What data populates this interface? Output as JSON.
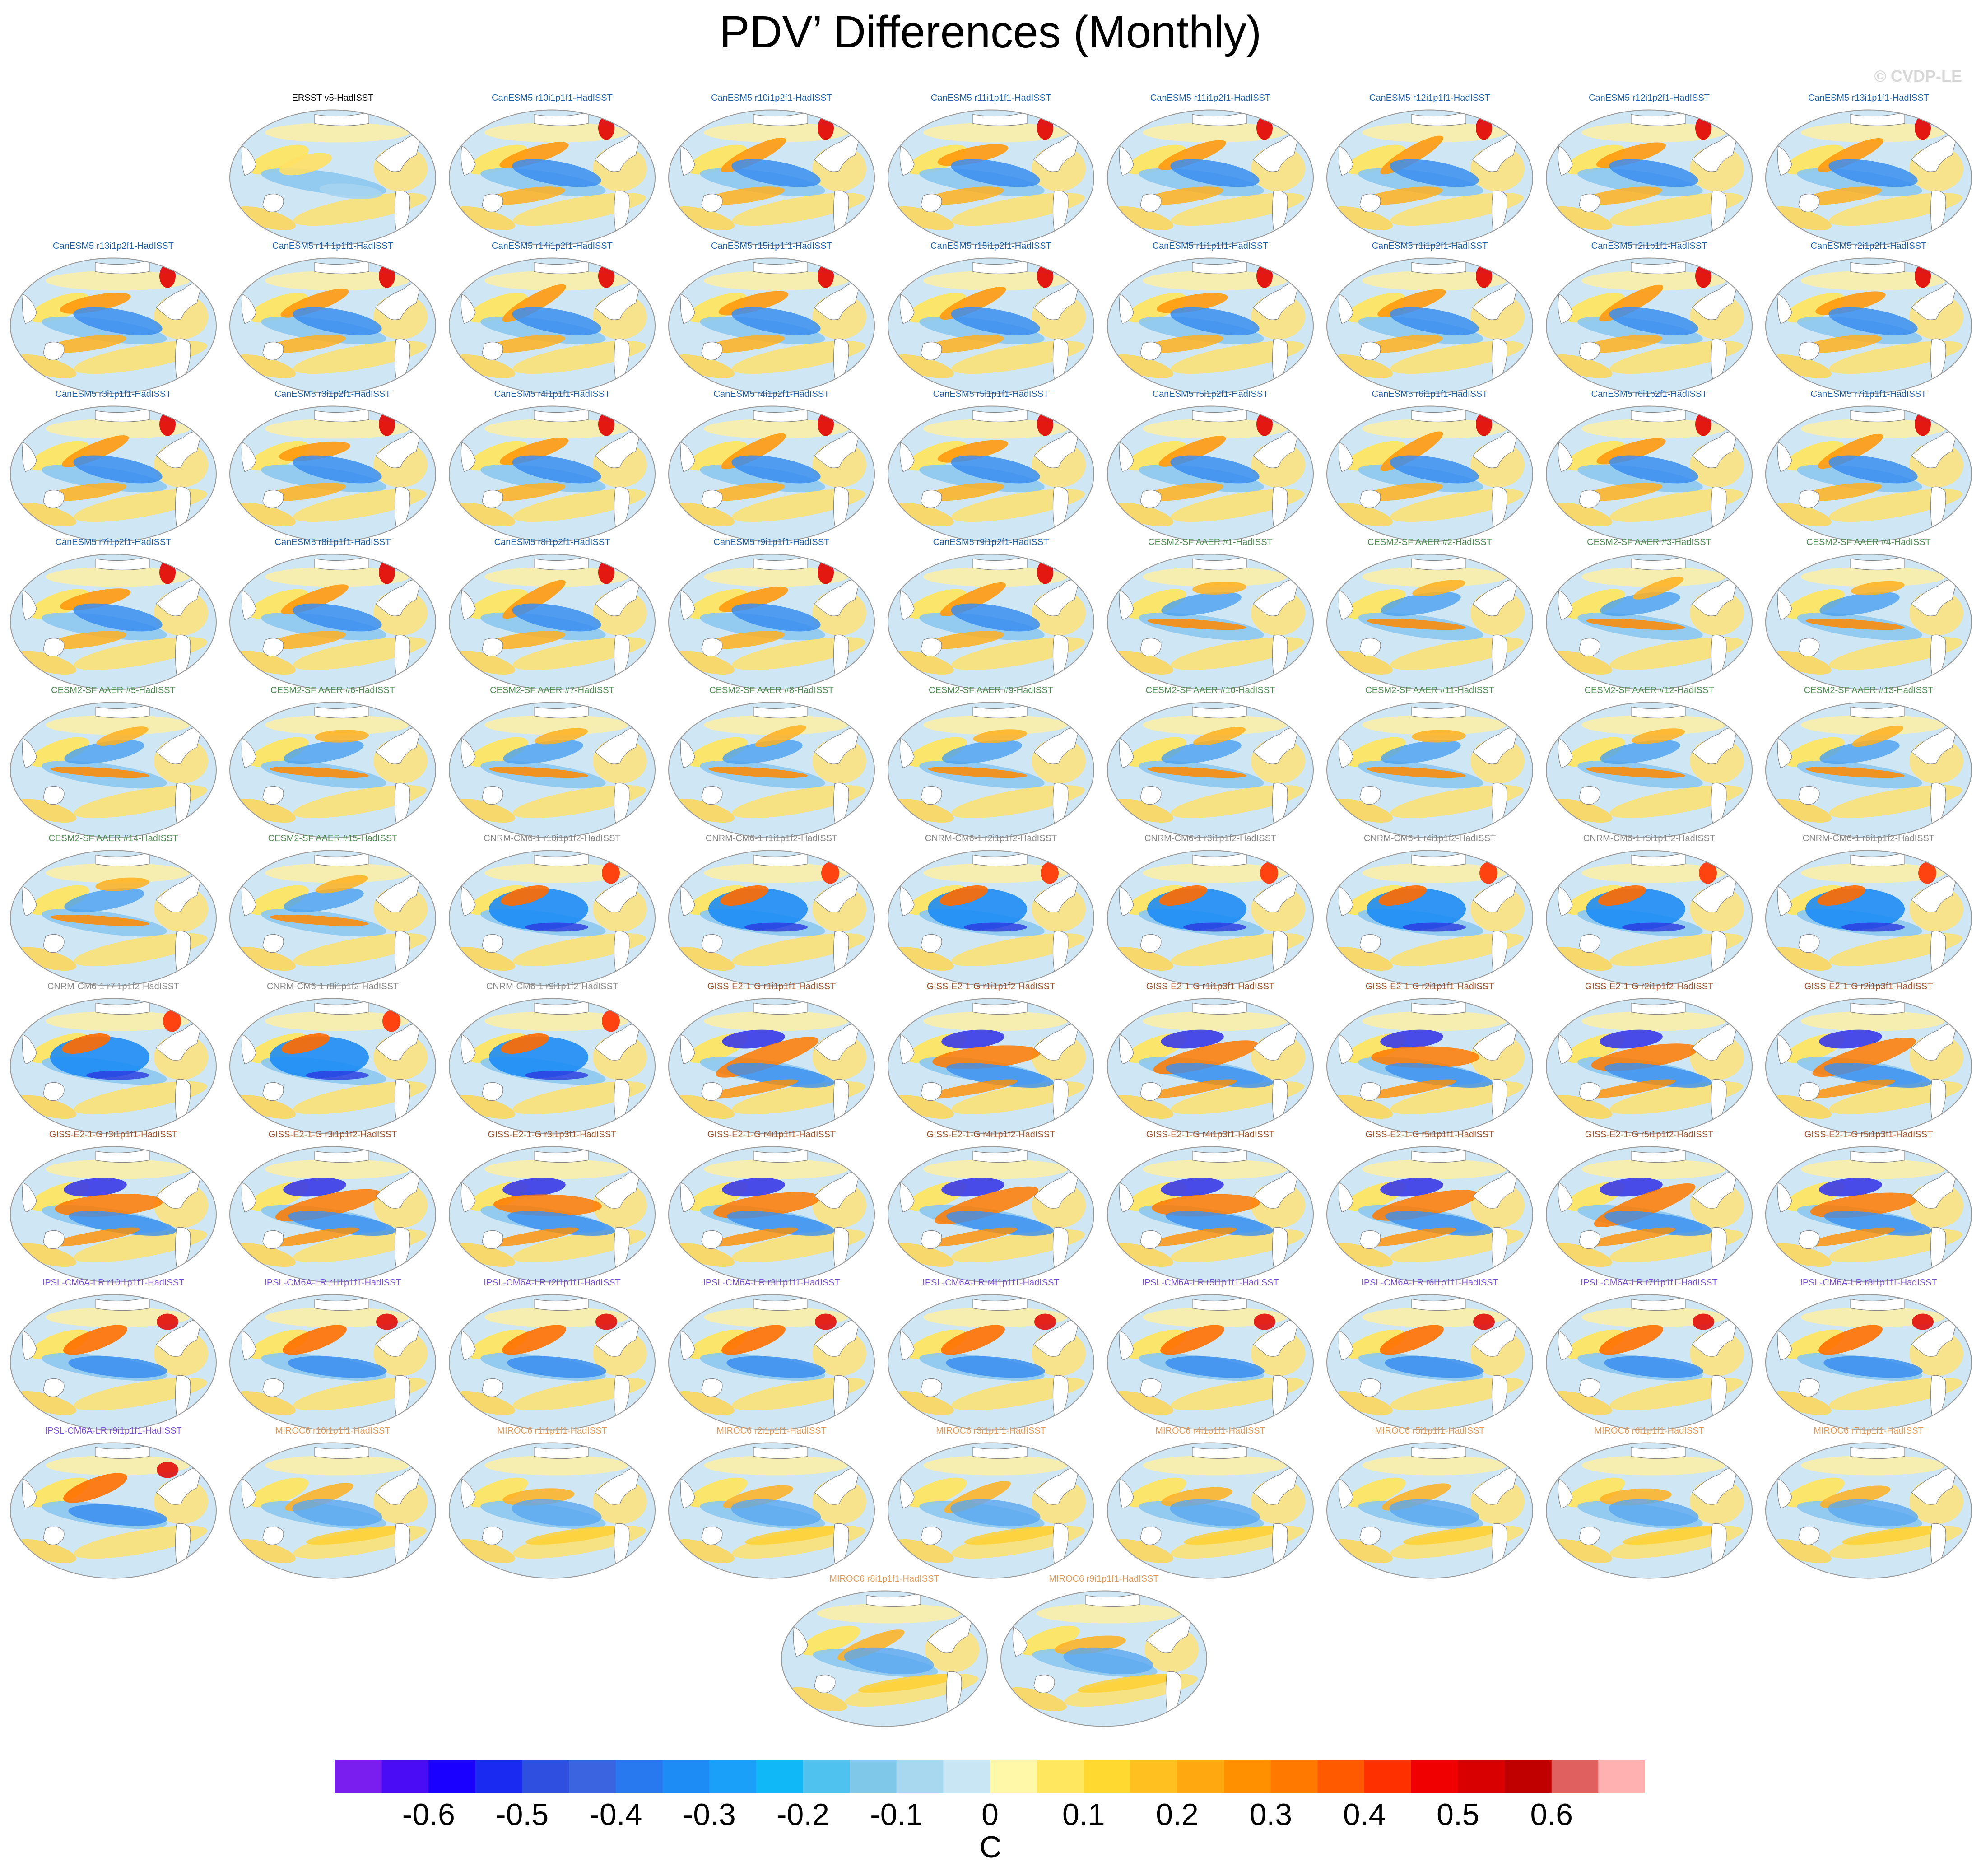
{
  "title": "PDV’ Differences (Monthly)",
  "watermark": "© CVDP-LE",
  "colors": {
    "ersst": "#000000",
    "canesm": "#1f5fa8",
    "cesm": "#4f8a53",
    "cnrm": "#8a8a8a",
    "giss": "#a0522d",
    "ipsl": "#7a4fd6",
    "miroc": "#e0995a"
  },
  "panels": [
    {
      "label": "ERSST v5-HadISST",
      "group": "ersst",
      "pattern": "obs"
    },
    {
      "label": "CanESM5 r10i1p1f1-HadISST",
      "group": "canesm",
      "pattern": "canesm"
    },
    {
      "label": "CanESM5 r10i1p2f1-HadISST",
      "group": "canesm",
      "pattern": "canesm"
    },
    {
      "label": "CanESM5 r11i1p1f1-HadISST",
      "group": "canesm",
      "pattern": "canesm"
    },
    {
      "label": "CanESM5 r11i1p2f1-HadISST",
      "group": "canesm",
      "pattern": "canesm"
    },
    {
      "label": "CanESM5 r12i1p1f1-HadISST",
      "group": "canesm",
      "pattern": "canesm"
    },
    {
      "label": "CanESM5 r12i1p2f1-HadISST",
      "group": "canesm",
      "pattern": "canesm"
    },
    {
      "label": "CanESM5 r13i1p1f1-HadISST",
      "group": "canesm",
      "pattern": "canesm"
    },
    {
      "label": "CanESM5 r13i1p2f1-HadISST",
      "group": "canesm",
      "pattern": "canesm"
    },
    {
      "label": "CanESM5 r14i1p1f1-HadISST",
      "group": "canesm",
      "pattern": "canesm"
    },
    {
      "label": "CanESM5 r14i1p2f1-HadISST",
      "group": "canesm",
      "pattern": "canesm"
    },
    {
      "label": "CanESM5 r15i1p1f1-HadISST",
      "group": "canesm",
      "pattern": "canesm"
    },
    {
      "label": "CanESM5 r15i1p2f1-HadISST",
      "group": "canesm",
      "pattern": "canesm"
    },
    {
      "label": "CanESM5 r1i1p1f1-HadISST",
      "group": "canesm",
      "pattern": "canesm"
    },
    {
      "label": "CanESM5 r1i1p2f1-HadISST",
      "group": "canesm",
      "pattern": "canesm"
    },
    {
      "label": "CanESM5 r2i1p1f1-HadISST",
      "group": "canesm",
      "pattern": "canesm"
    },
    {
      "label": "CanESM5 r2i1p2f1-HadISST",
      "group": "canesm",
      "pattern": "canesm"
    },
    {
      "label": "CanESM5 r3i1p1f1-HadISST",
      "group": "canesm",
      "pattern": "canesm"
    },
    {
      "label": "CanESM5 r3i1p2f1-HadISST",
      "group": "canesm",
      "pattern": "canesm"
    },
    {
      "label": "CanESM5 r4i1p1f1-HadISST",
      "group": "canesm",
      "pattern": "canesm"
    },
    {
      "label": "CanESM5 r4i1p2f1-HadISST",
      "group": "canesm",
      "pattern": "canesm"
    },
    {
      "label": "CanESM5 r5i1p1f1-HadISST",
      "group": "canesm",
      "pattern": "canesm"
    },
    {
      "label": "CanESM5 r5i1p2f1-HadISST",
      "group": "canesm",
      "pattern": "canesm"
    },
    {
      "label": "CanESM5 r6i1p1f1-HadISST",
      "group": "canesm",
      "pattern": "canesm"
    },
    {
      "label": "CanESM5 r6i1p2f1-HadISST",
      "group": "canesm",
      "pattern": "canesm"
    },
    {
      "label": "CanESM5 r7i1p1f1-HadISST",
      "group": "canesm",
      "pattern": "canesm"
    },
    {
      "label": "CanESM5 r7i1p2f1-HadISST",
      "group": "canesm",
      "pattern": "canesm"
    },
    {
      "label": "CanESM5 r8i1p1f1-HadISST",
      "group": "canesm",
      "pattern": "canesm"
    },
    {
      "label": "CanESM5 r8i1p2f1-HadISST",
      "group": "canesm",
      "pattern": "canesm"
    },
    {
      "label": "CanESM5 r9i1p1f1-HadISST",
      "group": "canesm",
      "pattern": "canesm"
    },
    {
      "label": "CanESM5 r9i1p2f1-HadISST",
      "group": "canesm",
      "pattern": "canesm"
    },
    {
      "label": "CESM2-SF AAER #1-HadISST",
      "group": "cesm",
      "pattern": "cesm"
    },
    {
      "label": "CESM2-SF AAER #2-HadISST",
      "group": "cesm",
      "pattern": "cesm"
    },
    {
      "label": "CESM2-SF AAER #3-HadISST",
      "group": "cesm",
      "pattern": "cesm"
    },
    {
      "label": "CESM2-SF AAER #4-HadISST",
      "group": "cesm",
      "pattern": "cesm"
    },
    {
      "label": "CESM2-SF AAER #5-HadISST",
      "group": "cesm",
      "pattern": "cesm"
    },
    {
      "label": "CESM2-SF AAER #6-HadISST",
      "group": "cesm",
      "pattern": "cesm"
    },
    {
      "label": "CESM2-SF AAER #7-HadISST",
      "group": "cesm",
      "pattern": "cesm"
    },
    {
      "label": "CESM2-SF AAER #8-HadISST",
      "group": "cesm",
      "pattern": "cesm"
    },
    {
      "label": "CESM2-SF AAER #9-HadISST",
      "group": "cesm",
      "pattern": "cesm"
    },
    {
      "label": "CESM2-SF AAER #10-HadISST",
      "group": "cesm",
      "pattern": "cesm"
    },
    {
      "label": "CESM2-SF AAER #11-HadISST",
      "group": "cesm",
      "pattern": "cesm"
    },
    {
      "label": "CESM2-SF AAER #12-HadISST",
      "group": "cesm",
      "pattern": "cesm"
    },
    {
      "label": "CESM2-SF AAER #13-HadISST",
      "group": "cesm",
      "pattern": "cesm"
    },
    {
      "label": "CESM2-SF AAER #14-HadISST",
      "group": "cesm",
      "pattern": "cesm"
    },
    {
      "label": "CESM2-SF AAER #15-HadISST",
      "group": "cesm",
      "pattern": "cesm"
    },
    {
      "label": "CNRM-CM6-1 r10i1p1f2-HadISST",
      "group": "cnrm",
      "pattern": "cnrm"
    },
    {
      "label": "CNRM-CM6-1 r1i1p1f2-HadISST",
      "group": "cnrm",
      "pattern": "cnrm"
    },
    {
      "label": "CNRM-CM6-1 r2i1p1f2-HadISST",
      "group": "cnrm",
      "pattern": "cnrm"
    },
    {
      "label": "CNRM-CM6-1 r3i1p1f2-HadISST",
      "group": "cnrm",
      "pattern": "cnrm"
    },
    {
      "label": "CNRM-CM6-1 r4i1p1f2-HadISST",
      "group": "cnrm",
      "pattern": "cnrm"
    },
    {
      "label": "CNRM-CM6-1 r5i1p1f2-HadISST",
      "group": "cnrm",
      "pattern": "cnrm"
    },
    {
      "label": "CNRM-CM6-1 r6i1p1f2-HadISST",
      "group": "cnrm",
      "pattern": "cnrm"
    },
    {
      "label": "CNRM-CM6-1 r7i1p1f2-HadISST",
      "group": "cnrm",
      "pattern": "cnrm"
    },
    {
      "label": "CNRM-CM6-1 r8i1p1f2-HadISST",
      "group": "cnrm",
      "pattern": "cnrm"
    },
    {
      "label": "CNRM-CM6-1 r9i1p1f2-HadISST",
      "group": "cnrm",
      "pattern": "cnrm"
    },
    {
      "label": "GISS-E2-1-G r1i1p1f1-HadISST",
      "group": "giss",
      "pattern": "giss"
    },
    {
      "label": "GISS-E2-1-G r1i1p1f2-HadISST",
      "group": "giss",
      "pattern": "giss"
    },
    {
      "label": "GISS-E2-1-G r1i1p3f1-HadISST",
      "group": "giss",
      "pattern": "giss"
    },
    {
      "label": "GISS-E2-1-G r2i1p1f1-HadISST",
      "group": "giss",
      "pattern": "giss"
    },
    {
      "label": "GISS-E2-1-G r2i1p1f2-HadISST",
      "group": "giss",
      "pattern": "giss"
    },
    {
      "label": "GISS-E2-1-G r2i1p3f1-HadISST",
      "group": "giss",
      "pattern": "giss"
    },
    {
      "label": "GISS-E2-1-G r3i1p1f1-HadISST",
      "group": "giss",
      "pattern": "giss"
    },
    {
      "label": "GISS-E2-1-G r3i1p1f2-HadISST",
      "group": "giss",
      "pattern": "giss"
    },
    {
      "label": "GISS-E2-1-G r3i1p3f1-HadISST",
      "group": "giss",
      "pattern": "giss"
    },
    {
      "label": "GISS-E2-1-G r4i1p1f1-HadISST",
      "group": "giss",
      "pattern": "giss"
    },
    {
      "label": "GISS-E2-1-G r4i1p1f2-HadISST",
      "group": "giss",
      "pattern": "giss"
    },
    {
      "label": "GISS-E2-1-G r4i1p3f1-HadISST",
      "group": "giss",
      "pattern": "giss"
    },
    {
      "label": "GISS-E2-1-G r5i1p1f1-HadISST",
      "group": "giss",
      "pattern": "giss"
    },
    {
      "label": "GISS-E2-1-G r5i1p1f2-HadISST",
      "group": "giss",
      "pattern": "giss"
    },
    {
      "label": "GISS-E2-1-G r5i1p3f1-HadISST",
      "group": "giss",
      "pattern": "giss"
    },
    {
      "label": "IPSL-CM6A-LR r10i1p1f1-HadISST",
      "group": "ipsl",
      "pattern": "ipsl"
    },
    {
      "label": "IPSL-CM6A-LR r1i1p1f1-HadISST",
      "group": "ipsl",
      "pattern": "ipsl"
    },
    {
      "label": "IPSL-CM6A-LR r2i1p1f1-HadISST",
      "group": "ipsl",
      "pattern": "ipsl"
    },
    {
      "label": "IPSL-CM6A-LR r3i1p1f1-HadISST",
      "group": "ipsl",
      "pattern": "ipsl"
    },
    {
      "label": "IPSL-CM6A-LR r4i1p1f1-HadISST",
      "group": "ipsl",
      "pattern": "ipsl"
    },
    {
      "label": "IPSL-CM6A-LR r5i1p1f1-HadISST",
      "group": "ipsl",
      "pattern": "ipsl"
    },
    {
      "label": "IPSL-CM6A-LR r6i1p1f1-HadISST",
      "group": "ipsl",
      "pattern": "ipsl"
    },
    {
      "label": "IPSL-CM6A-LR r7i1p1f1-HadISST",
      "group": "ipsl",
      "pattern": "ipsl"
    },
    {
      "label": "IPSL-CM6A-LR r8i1p1f1-HadISST",
      "group": "ipsl",
      "pattern": "ipsl"
    },
    {
      "label": "IPSL-CM6A-LR r9i1p1f1-HadISST",
      "group": "ipsl",
      "pattern": "ipsl"
    },
    {
      "label": "MIROC6 r10i1p1f1-HadISST",
      "group": "miroc",
      "pattern": "miroc"
    },
    {
      "label": "MIROC6 r1i1p1f1-HadISST",
      "group": "miroc",
      "pattern": "miroc"
    },
    {
      "label": "MIROC6 r2i1p1f1-HadISST",
      "group": "miroc",
      "pattern": "miroc"
    },
    {
      "label": "MIROC6 r3i1p1f1-HadISST",
      "group": "miroc",
      "pattern": "miroc"
    },
    {
      "label": "MIROC6 r4i1p1f1-HadISST",
      "group": "miroc",
      "pattern": "miroc"
    },
    {
      "label": "MIROC6 r5i1p1f1-HadISST",
      "group": "miroc",
      "pattern": "miroc"
    },
    {
      "label": "MIROC6 r6i1p1f1-HadISST",
      "group": "miroc",
      "pattern": "miroc"
    },
    {
      "label": "MIROC6 r7i1p1f1-HadISST",
      "group": "miroc",
      "pattern": "miroc"
    },
    {
      "label": "MIROC6 r8i1p1f1-HadISST",
      "group": "miroc",
      "pattern": "miroc"
    },
    {
      "label": "MIROC6 r9i1p1f1-HadISST",
      "group": "miroc",
      "pattern": "miroc"
    }
  ],
  "colorbar": {
    "colors": [
      "#7a1ef0",
      "#4a0cf5",
      "#1a00ff",
      "#1a2af0",
      "#2f4fe0",
      "#3a64e0",
      "#2878f0",
      "#1e8cf5",
      "#1aa0f8",
      "#10b8f8",
      "#50c2f0",
      "#80c8ea",
      "#a8d8f0",
      "#c8e6f4",
      "#fff8a8",
      "#ffe860",
      "#ffd830",
      "#ffc020",
      "#ffa810",
      "#ff9000",
      "#ff7800",
      "#ff5a00",
      "#ff3000",
      "#f00000",
      "#d80000",
      "#c00000",
      "#e06060",
      "#ffb0b0"
    ],
    "ticks": [
      "-0.6",
      "-0.5",
      "-0.4",
      "-0.3",
      "-0.2",
      "-0.1",
      "0",
      "0.1",
      "0.2",
      "0.3",
      "0.4",
      "0.5",
      "0.6"
    ],
    "units": "C"
  }
}
